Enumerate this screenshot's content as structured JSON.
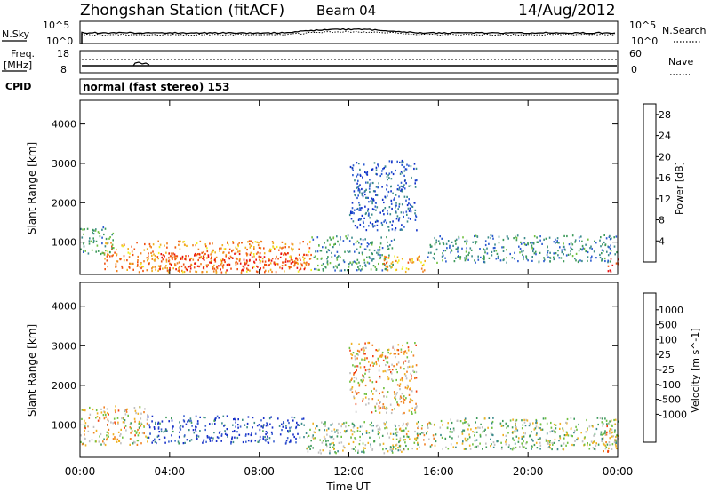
{
  "header": {
    "station": "Zhongshan Station (fitACF)",
    "beam": "Beam 04",
    "date": "14/Aug/2012"
  },
  "strips": {
    "nsky": {
      "label": "N.Sky",
      "ytick_top": "10^5",
      "ytick_bottom": "10^0"
    },
    "nsearch": {
      "label": "N.Search",
      "ytick_top": "10^5",
      "ytick_bottom": "10^0"
    },
    "freq": {
      "label_line1": "Freq.",
      "label_line2": "[MHz]",
      "ytick_top": "18",
      "ytick_bottom": "8"
    },
    "nave": {
      "label": "Nave",
      "ytick_top": "60",
      "ytick_bottom": "0"
    },
    "cpid": {
      "label": "CPID",
      "value": "normal (fast stereo) 153"
    }
  },
  "chart_data": [
    {
      "type": "heatmap",
      "title": "",
      "xlabel": "",
      "ylabel": "Slant Range [km]",
      "xlim": [
        "00:00",
        "24:00"
      ],
      "ylim": [
        180,
        4600
      ],
      "y_ticks": [
        "1000",
        "2000",
        "3000",
        "4000"
      ],
      "colorbar": {
        "label": "Power [dB]",
        "ticks": [
          "4",
          "8",
          "12",
          "16",
          "20",
          "24",
          "28"
        ],
        "range": [
          0,
          30
        ],
        "colors": [
          "#1030c8",
          "#2a5ad0",
          "#3a8a8a",
          "#3d9a5a",
          "#70c040",
          "#f0f020",
          "#f0b020",
          "#f08020",
          "#f05010",
          "#e81010"
        ]
      },
      "scatter_regions": [
        {
          "t": [
            1.0,
            10.3
          ],
          "r": [
            250,
            1050
          ],
          "value": 22
        },
        {
          "t": [
            3.5,
            10.0
          ],
          "r": [
            300,
            750
          ],
          "value": 28
        },
        {
          "t": [
            0.0,
            1.5
          ],
          "r": [
            700,
            1400
          ],
          "value": 10
        },
        {
          "t": [
            10.3,
            14.0
          ],
          "r": [
            300,
            1200
          ],
          "value": 9
        },
        {
          "t": [
            13.5,
            15.5
          ],
          "r": [
            250,
            700
          ],
          "value": 20
        },
        {
          "t": [
            15.5,
            24.0
          ],
          "r": [
            500,
            1200
          ],
          "value": 8
        },
        {
          "t": [
            12.0,
            15.0
          ],
          "r": [
            1300,
            3100
          ],
          "value": 4
        },
        {
          "t": [
            23.5,
            24.0
          ],
          "r": [
            250,
            600
          ],
          "value": 28
        }
      ]
    },
    {
      "type": "heatmap",
      "title": "",
      "xlabel": "Time UT",
      "ylabel": "Slant Range [km]",
      "xlim": [
        "00:00",
        "24:00"
      ],
      "x_ticks": [
        "00:00",
        "04:00",
        "08:00",
        "12:00",
        "16:00",
        "20:00",
        "00:00"
      ],
      "ylim": [
        180,
        4600
      ],
      "y_ticks": [
        "1000",
        "2000",
        "3000",
        "4000"
      ],
      "colorbar": {
        "label": "Velocity [m s^-1]",
        "ticks": [
          "1000",
          "500",
          "100",
          "25",
          "-25",
          "-100",
          "-500",
          "-1000"
        ],
        "range": [
          -1000,
          1000
        ],
        "colors": [
          "#1830c8",
          "#3a60d0",
          "#3a8a8a",
          "#3d9a5a",
          "#70c040",
          "#c0c0c0",
          "#f0b020",
          "#f08020",
          "#f04010",
          "#e81010"
        ]
      },
      "scatter_regions": [
        {
          "t": [
            3.0,
            10.0
          ],
          "r": [
            550,
            1250
          ],
          "value": 800
        },
        {
          "t": [
            0.0,
            3.0
          ],
          "r": [
            500,
            1500
          ],
          "value": -200
        },
        {
          "t": [
            10.0,
            14.5
          ],
          "r": [
            300,
            1100
          ],
          "value": 100
        },
        {
          "t": [
            14.0,
            16.0
          ],
          "r": [
            400,
            1100
          ],
          "value": -100
        },
        {
          "t": [
            16.0,
            24.0
          ],
          "r": [
            400,
            1200
          ],
          "value": 60
        },
        {
          "t": [
            12.0,
            15.0
          ],
          "r": [
            1300,
            3100
          ],
          "value": -300
        },
        {
          "t": [
            23.3,
            24.0
          ],
          "r": [
            300,
            1000
          ],
          "value": -300
        }
      ]
    }
  ]
}
